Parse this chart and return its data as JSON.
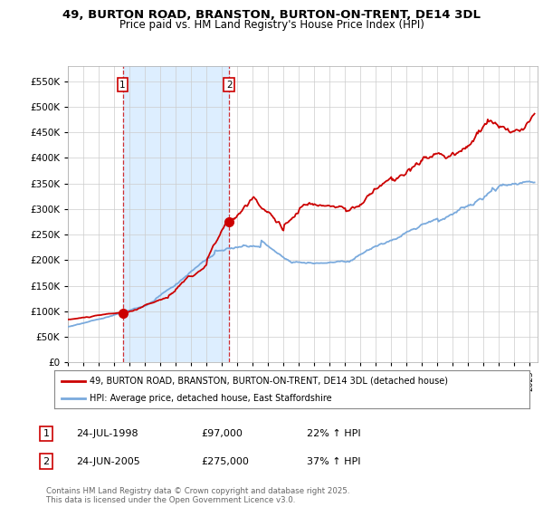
{
  "title_line1": "49, BURTON ROAD, BRANSTON, BURTON-ON-TRENT, DE14 3DL",
  "title_line2": "Price paid vs. HM Land Registry's House Price Index (HPI)",
  "ylim": [
    0,
    580000
  ],
  "yticks": [
    0,
    50000,
    100000,
    150000,
    200000,
    250000,
    300000,
    350000,
    400000,
    450000,
    500000,
    550000
  ],
  "ytick_labels": [
    "£0",
    "£50K",
    "£100K",
    "£150K",
    "£200K",
    "£250K",
    "£300K",
    "£350K",
    "£400K",
    "£450K",
    "£500K",
    "£550K"
  ],
  "xlim_start": 1995.0,
  "xlim_end": 2025.5,
  "red_color": "#cc0000",
  "blue_color": "#7aaadd",
  "shade_color": "#ddeeff",
  "transaction1_x": 1998.56,
  "transaction1_y": 97000,
  "transaction1_label": "1",
  "transaction2_x": 2005.48,
  "transaction2_y": 275000,
  "transaction2_label": "2",
  "legend_red_label": "49, BURTON ROAD, BRANSTON, BURTON-ON-TRENT, DE14 3DL (detached house)",
  "legend_blue_label": "HPI: Average price, detached house, East Staffordshire",
  "footnote": "Contains HM Land Registry data © Crown copyright and database right 2025.\nThis data is licensed under the Open Government Licence v3.0.",
  "table_rows": [
    {
      "num": "1",
      "date": "24-JUL-1998",
      "price": "£97,000",
      "hpi": "22% ↑ HPI"
    },
    {
      "num": "2",
      "date": "24-JUN-2005",
      "price": "£275,000",
      "hpi": "37% ↑ HPI"
    }
  ],
  "background_color": "#ffffff"
}
